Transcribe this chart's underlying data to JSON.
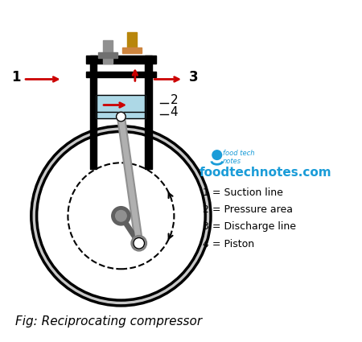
{
  "bg_color": "#ffffff",
  "title": "Fig: Reciprocating compressor",
  "title_fontsize": 11,
  "legend_lines": [
    "1 = Suction line",
    "2 = Pressure area",
    "3 = Discharge line",
    "4 = Piston"
  ],
  "website": "foodtechnotes.com",
  "website_color": "#1a9cd8",
  "label_color": "#000000",
  "arrow_color": "#cc0000",
  "cylinder_color": "#000000",
  "piston_fill": "#add8e6",
  "valve_left_color": "#808080",
  "valve_right_color": "#b8860b",
  "rod_color": "#a0a0a0",
  "crank_color": "#606060"
}
